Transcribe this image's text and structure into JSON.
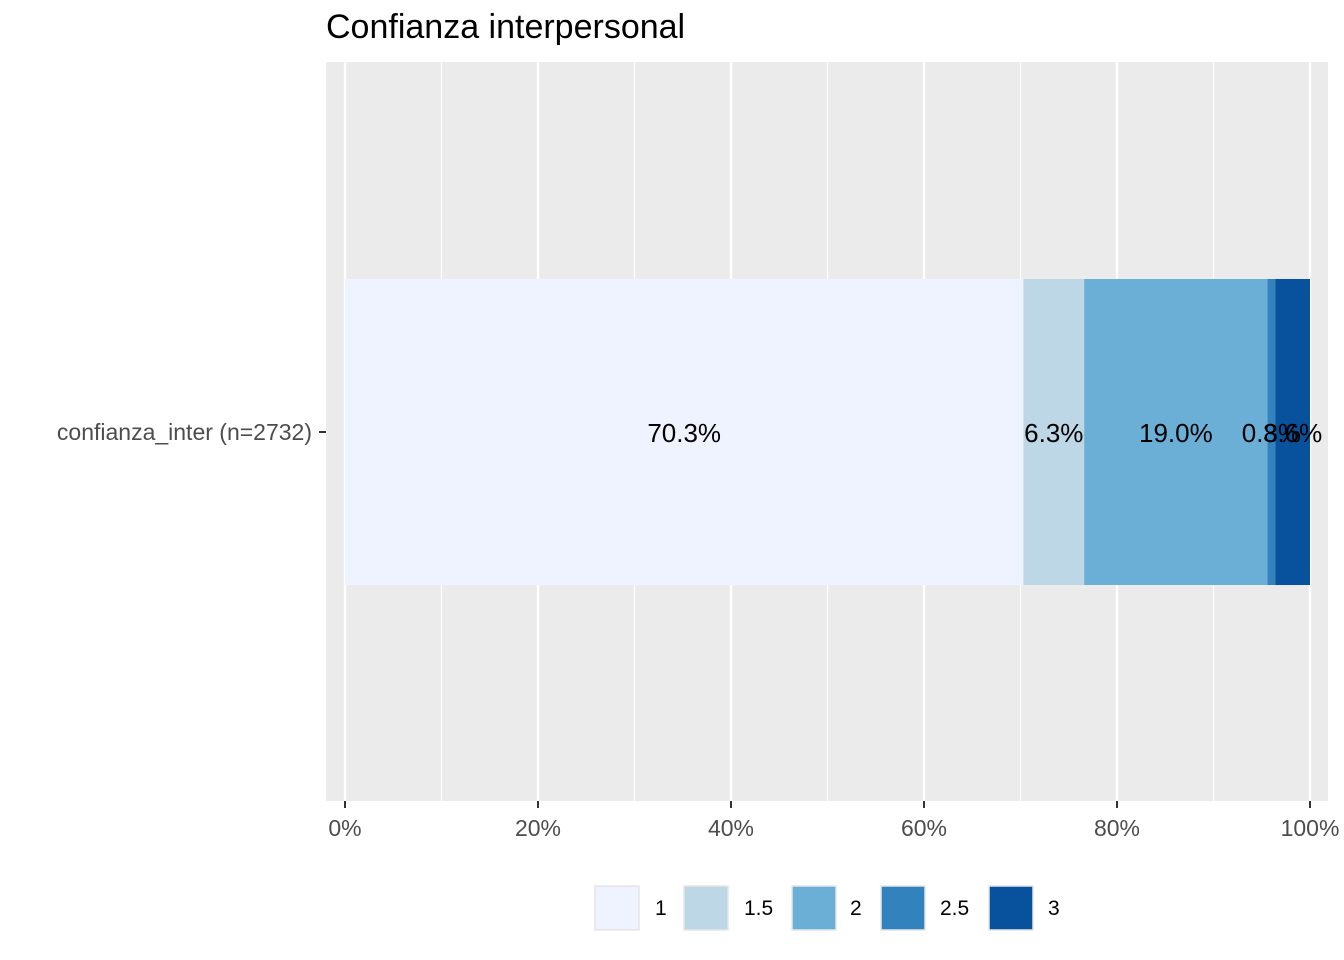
{
  "chart_data": {
    "type": "bar",
    "orientation": "horizontal",
    "stacked": "percent",
    "title": "Confianza interpersonal",
    "xlabel": "",
    "ylabel": "",
    "categories": [
      "confianza_inter (n=2732)"
    ],
    "x_ticks": [
      "0%",
      "20%",
      "40%",
      "60%",
      "80%",
      "100%"
    ],
    "xlim": [
      0,
      100
    ],
    "grid": true,
    "legend_position": "bottom",
    "series": [
      {
        "name": "1",
        "values": [
          70.3
        ],
        "label": "70.3%",
        "color": "#eff3ff"
      },
      {
        "name": "1.5",
        "values": [
          6.3
        ],
        "label": "6.3%",
        "color": "#bdd7e7"
      },
      {
        "name": "2",
        "values": [
          19.0
        ],
        "label": "19.0%",
        "color": "#6baed6"
      },
      {
        "name": "2.5",
        "values": [
          0.8
        ],
        "label": "0.8%",
        "color": "#3182bd"
      },
      {
        "name": "3",
        "values": [
          3.6
        ],
        "label": "3.6%",
        "color": "#08519c"
      }
    ],
    "panel_background": "#ebebeb",
    "grid_color": "#ffffff"
  }
}
